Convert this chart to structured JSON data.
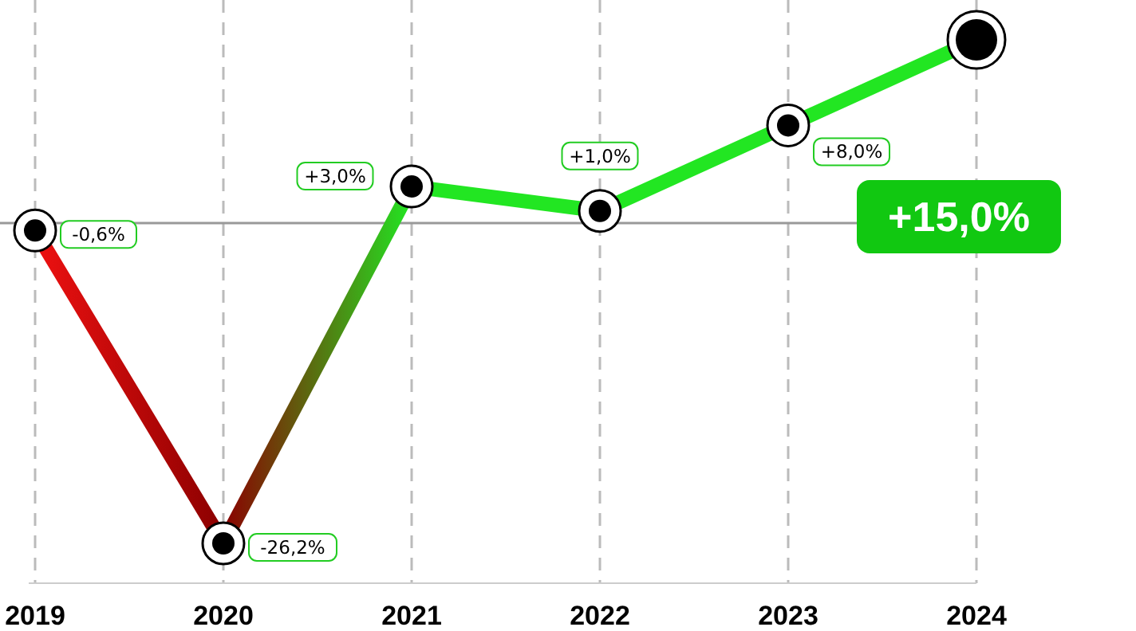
{
  "chart_data": {
    "type": "line",
    "categories": [
      "2019",
      "2020",
      "2021",
      "2022",
      "2023",
      "2024"
    ],
    "values": [
      -0.6,
      -26.2,
      3.0,
      1.0,
      8.0,
      15.0
    ],
    "value_labels": [
      "-0,6%",
      "-26,2%",
      "+3,0%",
      "+1,0%",
      "+8,0%",
      "+15,0%"
    ],
    "colors": [
      "#ee1111",
      "#8b0000",
      "#22e622",
      "#22e622",
      "#22e622",
      "#22e622"
    ],
    "ref_lines": [
      {
        "axis": "y",
        "value": 0,
        "color": "#999999"
      }
    ],
    "grid": "x",
    "tick_labels": "x",
    "marker": "circle",
    "data_labels": true
  }
}
